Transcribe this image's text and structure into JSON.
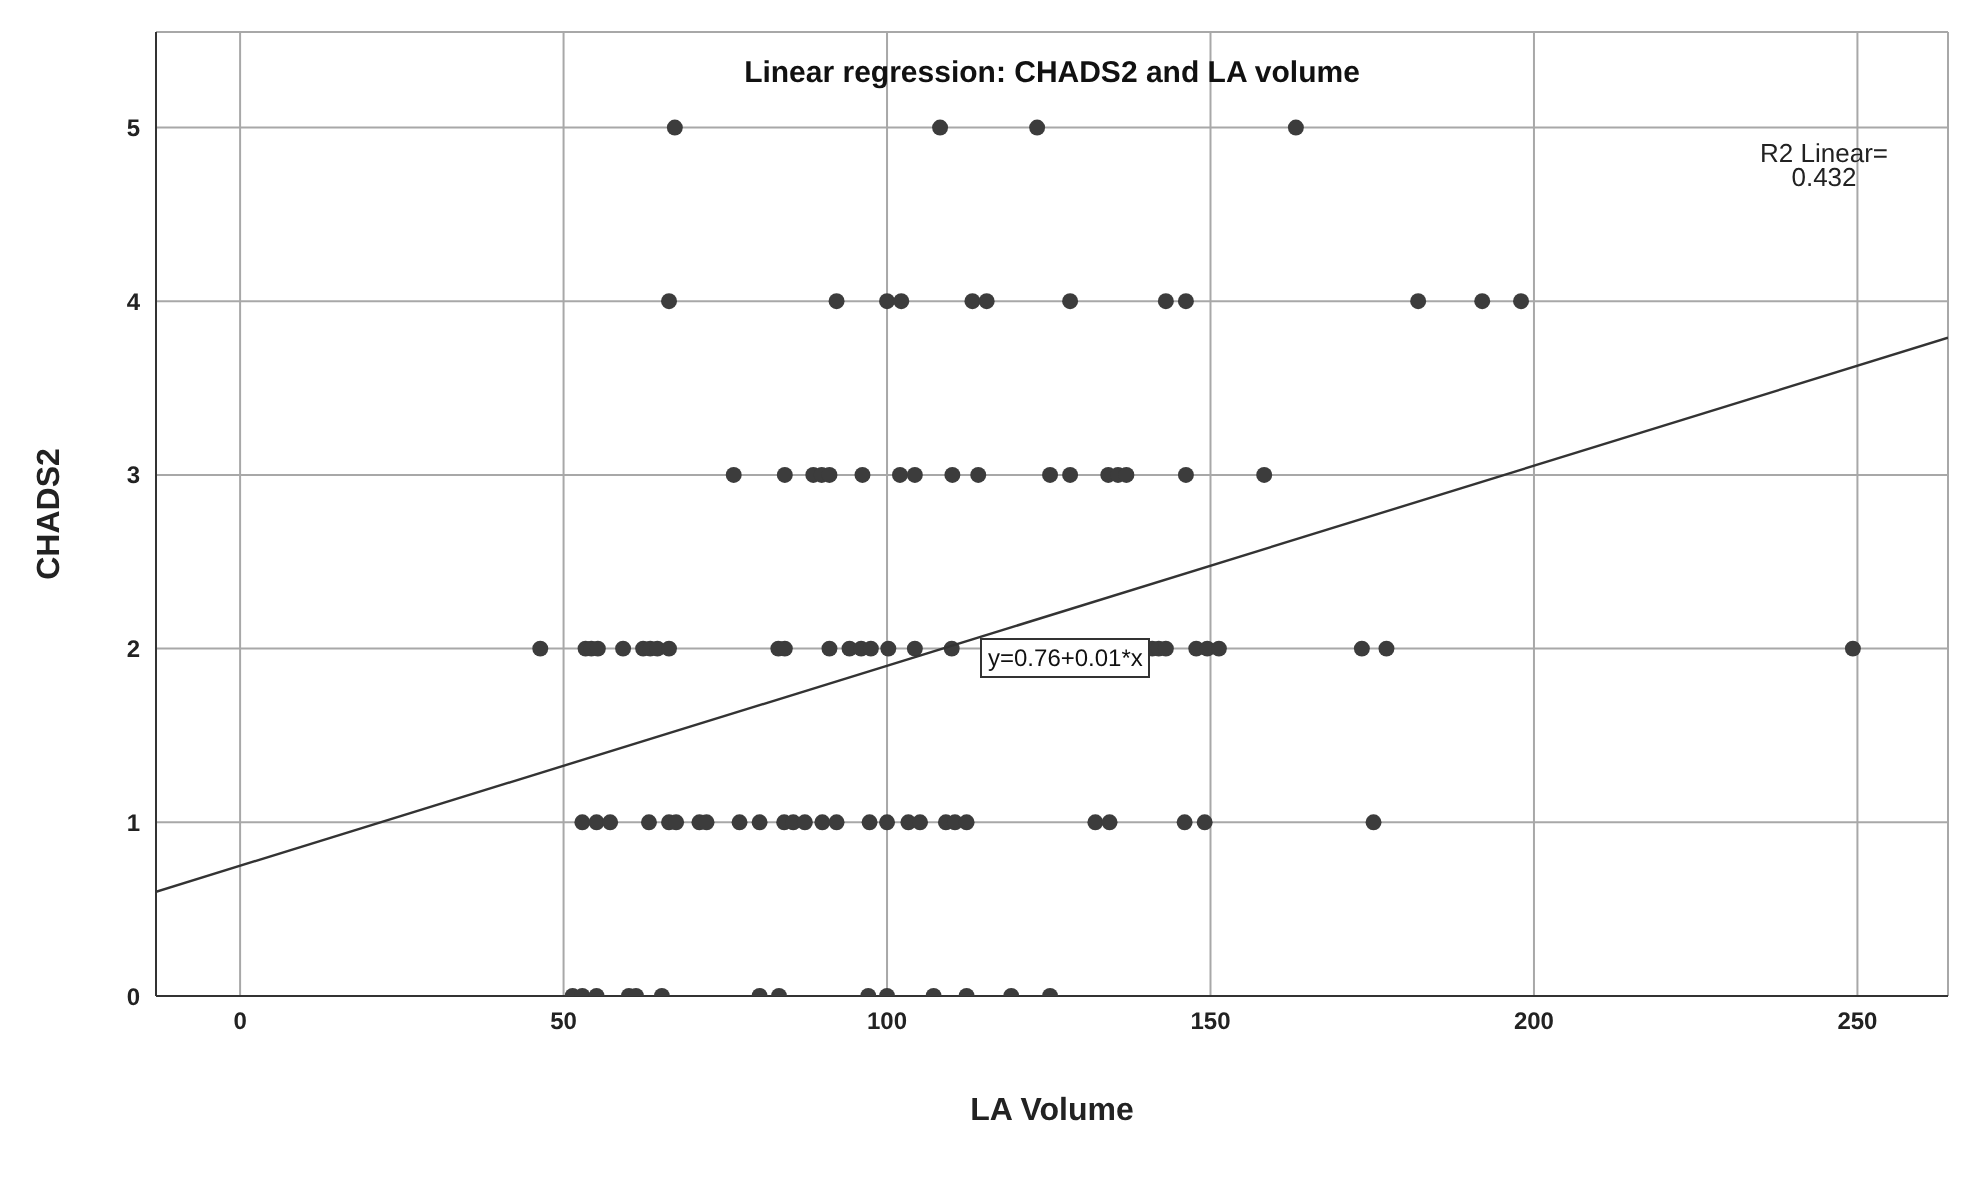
{
  "chart_data": {
    "type": "scatter",
    "title": "Linear regression: CHADS2 and LA volume",
    "xlabel": "LA Volume",
    "ylabel": "CHADS2",
    "xlim": [
      -13,
      264
    ],
    "xticks": [
      0,
      50,
      100,
      150,
      200,
      250
    ],
    "ylim": [
      0,
      5.55
    ],
    "yticks": [
      0,
      1,
      2,
      3,
      4,
      5
    ],
    "grid": true,
    "legend": false,
    "series": [
      {
        "color": "#3c3c3c",
        "marker": "circle",
        "x": [
          67.2,
          108.2,
          123.2,
          163.2,
          66.3,
          92.2,
          100,
          102.2,
          113.2,
          115.4,
          128.3,
          143.1,
          146.2,
          182.1,
          192,
          198,
          76.3,
          84.2,
          88.6,
          89.9,
          91.1,
          96.2,
          102,
          104.3,
          110.1,
          114.1,
          125.2,
          128.3,
          134.2,
          135.7,
          137,
          146.2,
          158.3,
          46.4,
          53.4,
          54.3,
          55.3,
          59.2,
          62.3,
          63.4,
          64.5,
          66.3,
          83.2,
          84.2,
          91.1,
          94.2,
          96,
          97.5,
          100.2,
          104.3,
          110,
          141,
          142,
          143.1,
          147.8,
          149.5,
          151.3,
          173.4,
          177.2,
          249.3,
          52.9,
          55.1,
          57.2,
          63.2,
          66.3,
          67.4,
          71,
          72.1,
          77.2,
          80.3,
          84.1,
          85.5,
          87.3,
          90,
          92.2,
          97.3,
          100,
          103.3,
          105.1,
          109.1,
          110.5,
          112.3,
          132.2,
          134.4,
          146,
          149.1,
          175.2,
          51.4,
          52.9,
          55.1,
          60.1,
          61.2,
          65.2,
          80.3,
          83.3,
          97.1,
          100,
          107.2,
          112.3,
          119.2,
          125.2
        ],
        "values": [
          5,
          5,
          5,
          5,
          4,
          4,
          4,
          4,
          4,
          4,
          4,
          4,
          4,
          4,
          4,
          4,
          3,
          3,
          3,
          3,
          3,
          3,
          3,
          3,
          3,
          3,
          3,
          3,
          3,
          3,
          3,
          3,
          3,
          2,
          2,
          2,
          2,
          2,
          2,
          2,
          2,
          2,
          2,
          2,
          2,
          2,
          2,
          2,
          2,
          2,
          2,
          2,
          2,
          2,
          2,
          2,
          2,
          2,
          2,
          2,
          1,
          1,
          1,
          1,
          1,
          1,
          1,
          1,
          1,
          1,
          1,
          1,
          1,
          1,
          1,
          1,
          1,
          1,
          1,
          1,
          1,
          1,
          1,
          1,
          1,
          1,
          1,
          0,
          0,
          0,
          0,
          0,
          0,
          0,
          0,
          0,
          0,
          0,
          0,
          0,
          0
        ]
      },
      {
        "type": "line",
        "color": "#333333",
        "line_style": "solid",
        "marker": "none",
        "x": [
          -13,
          264
        ],
        "values": [
          0.6,
          3.79
        ]
      }
    ],
    "annotations": [
      "y=0.76+0.01*x",
      "R2 Linear=\n0.432"
    ]
  }
}
